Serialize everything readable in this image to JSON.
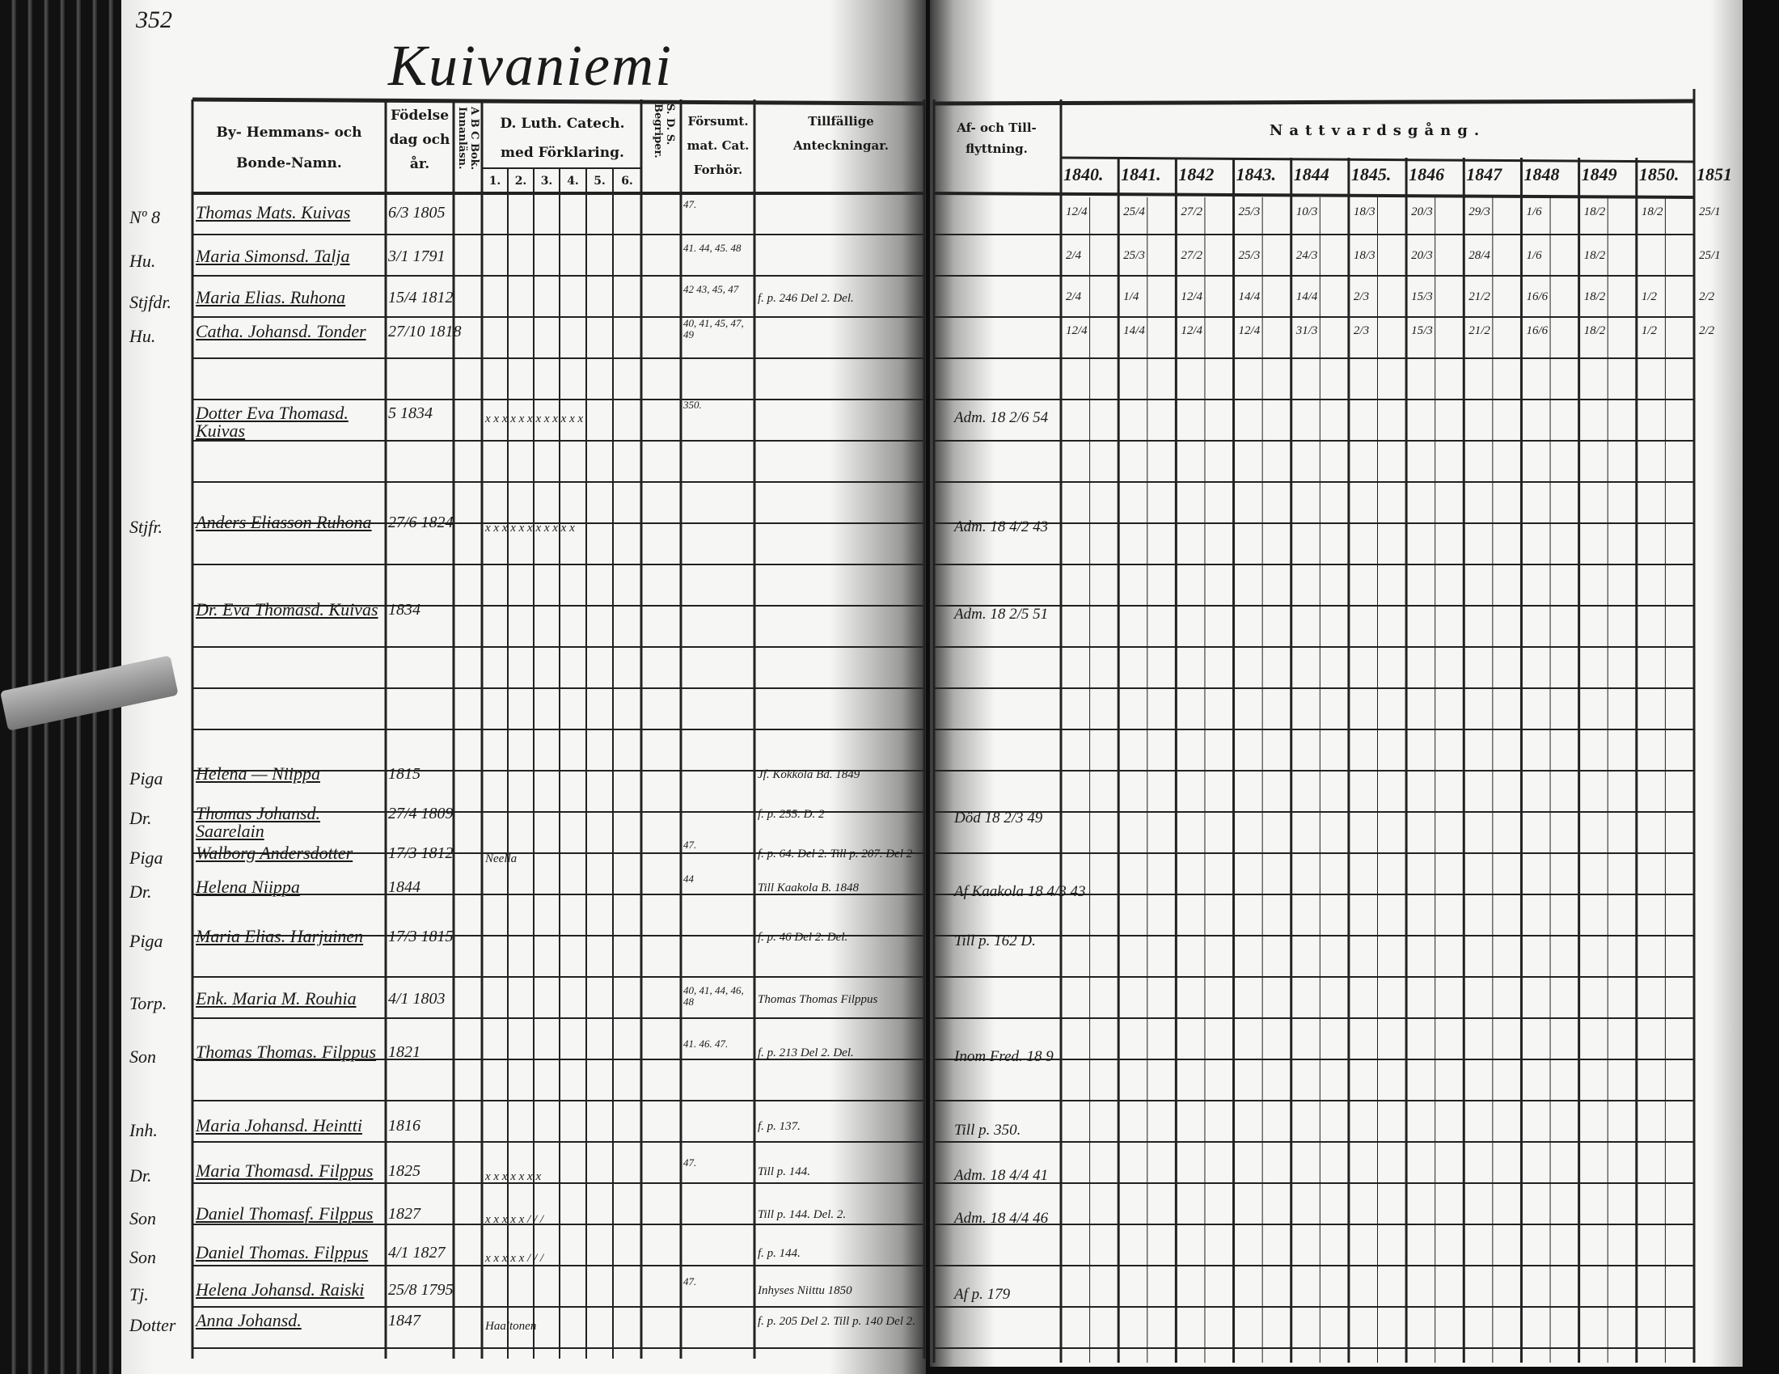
{
  "page_number": "352",
  "village_title": "Kuivaniemi",
  "left_headers": {
    "name": "By- Hemmans- och Bonde-Namn.",
    "birth": "Födelse dag och år.",
    "abc": "A B C Bok. Innanläsn.",
    "catechism": "D. Luth. Catech. med Förklaring.",
    "catechism_sub": [
      "1.",
      "2.",
      "3.",
      "4.",
      "5.",
      "6."
    ],
    "sds": "S. D. S. Begriper.",
    "forsumm": "Försumt. mat. Cat. Forhör.",
    "tillfallige": "Tillfällige Anteckningar."
  },
  "right_headers": {
    "af_till": "Af- och Till-flyttning.",
    "nattvard": "Nattvardsgång.",
    "years": [
      "1840.",
      "1841.",
      "1842",
      "1843.",
      "1844",
      "1845.",
      "1846",
      "1847",
      "1848",
      "1849",
      "1850.",
      "1851"
    ]
  },
  "rows": [
    {
      "margin": "Nº 8",
      "name": "Thomas Mats. Kuivas",
      "birth": "6/3 1805",
      "marks": "",
      "forsum": "47.",
      "notes": "",
      "af_till": "",
      "communion": [
        "12/4",
        "25/4",
        "27/2",
        "25/3",
        "10/3",
        "18/3",
        "20/3",
        "29/3",
        "1/6",
        "18/2",
        "18/2",
        "25/1"
      ]
    },
    {
      "margin": "Hu.",
      "name": "Maria Simonsd. Talja",
      "birth": "3/1 1791",
      "marks": "",
      "forsum": "41. 44, 45. 48",
      "notes": "",
      "af_till": "",
      "communion": [
        "2/4",
        "25/3",
        "27/2",
        "25/3",
        "24/3",
        "18/3",
        "20/3",
        "28/4",
        "1/6",
        "18/2",
        "",
        "25/1"
      ]
    },
    {
      "margin": "Stjfdr.",
      "name": "Maria Elias. Ruhona",
      "birth": "15/4 1812",
      "marks": "",
      "forsum": "42 43, 45, 47",
      "notes": "f. p. 246 Del 2. Del.",
      "af_till": "",
      "communion": [
        "2/4",
        "1/4",
        "12/4",
        "14/4",
        "14/4",
        "2/3",
        "15/3",
        "21/2",
        "16/6",
        "18/2",
        "1/2",
        "2/2"
      ]
    },
    {
      "margin": "Hu.",
      "name": "Catha. Johansd. Tonder",
      "birth": "27/10 1818",
      "marks": "",
      "forsum": "40, 41, 45, 47, 49",
      "notes": "",
      "af_till": "",
      "communion": [
        "12/4",
        "14/4",
        "12/4",
        "12/4",
        "31/3",
        "2/3",
        "15/3",
        "21/2",
        "16/6",
        "18/2",
        "1/2",
        "2/2"
      ]
    },
    {
      "margin": "",
      "name": "Dotter Eva Thomasd. Kuivas",
      "birth": "5 1834",
      "marks": "x x x x x x x x x x x x",
      "forsum": "350.",
      "notes": "",
      "af_till": "Adm. 18 2/6 54",
      "communion": []
    },
    {
      "margin": "Stjfr.",
      "name": "Anders Eliasson Ruhona",
      "birth": "27/6 1824",
      "marks": "x x x x x x x x x x x",
      "forsum": "",
      "notes": "",
      "af_till": "Adm. 18 4/2 43",
      "communion": []
    },
    {
      "margin": "",
      "name": "Dr. Eva Thomasd. Kuivas",
      "birth": "1834",
      "marks": "",
      "forsum": "",
      "notes": "",
      "af_till": "Adm. 18 2/5 51",
      "communion": []
    },
    {
      "margin": "Piga",
      "name": "Helena — Niippa",
      "birth": "1815",
      "marks": "",
      "forsum": "",
      "notes": "Jf. Kokkola Bd. 1849",
      "af_till": "",
      "communion": []
    },
    {
      "margin": "Dr.",
      "name": "Thomas Johansd. Saarelain",
      "birth": "27/4 1809",
      "marks": "",
      "forsum": "",
      "notes": "f. p. 255. D. 2",
      "af_till": "Död 18 2/3 49",
      "communion": []
    },
    {
      "margin": "Piga",
      "name": "Walborg Andersdotter",
      "birth": "17/3 1812",
      "marks": "Neella",
      "forsum": "47.",
      "notes": "f. p. 64. Del 2. Till p. 207. Del 2",
      "af_till": "",
      "communion": []
    },
    {
      "margin": "Dr.",
      "name": "Helena Niippa",
      "birth": "1844",
      "marks": "",
      "forsum": "44",
      "notes": "Till Kaakola B. 1848",
      "af_till": "Af Kaakola 18 4/3 43",
      "communion": []
    },
    {
      "margin": "Piga",
      "name": "Maria Elias. Harjuinen",
      "birth": "17/3 1815",
      "marks": "",
      "forsum": "",
      "notes": "f. p. 46 Del 2. Del.",
      "af_till": "Till p. 162 D.",
      "communion": []
    },
    {
      "margin": "Torp.",
      "name": "Enk. Maria M. Rouhia",
      "birth": "4/1 1803",
      "marks": "",
      "forsum": "40, 41, 44, 46, 48",
      "notes": "Thomas Thomas Filppus",
      "af_till": "",
      "communion": []
    },
    {
      "margin": "Son",
      "name": "Thomas Thomas. Filppus",
      "birth": "1821",
      "marks": "",
      "forsum": "41. 46. 47.",
      "notes": "f. p. 213 Del 2. Del.",
      "af_till": "Inom Fred. 18 9",
      "communion": []
    },
    {
      "margin": "Inh.",
      "name": "Maria Johansd. Heintti",
      "birth": "1816",
      "marks": "",
      "forsum": "",
      "notes": "f. p. 137.",
      "af_till": "Till p. 350.",
      "communion": []
    },
    {
      "margin": "Dr.",
      "name": "Maria Thomasd. Filppus",
      "birth": "1825",
      "marks": "x x x x x x x",
      "forsum": "47.",
      "notes": "Till p. 144.",
      "af_till": "Adm. 18 4/4 41",
      "communion": []
    },
    {
      "margin": "Son",
      "name": "Daniel Thomasf. Filppus",
      "birth": "1827",
      "marks": "x x x x x / / /",
      "forsum": "",
      "notes": "Till p. 144. Del. 2.",
      "af_till": "Adm. 18 4/4 46",
      "communion": []
    },
    {
      "margin": "Son",
      "name": "Daniel Thomas. Filppus",
      "birth": "4/1 1827",
      "marks": "x x x x x / / /",
      "forsum": "",
      "notes": "f. p. 144.",
      "af_till": "",
      "communion": []
    },
    {
      "margin": "Tj.",
      "name": "Helena Johansd. Raiski",
      "birth": "25/8 1795",
      "marks": "",
      "forsum": "47.",
      "notes": "Inhyses Niittu 1850",
      "af_till": "Af p. 179",
      "communion": []
    },
    {
      "margin": "Dotter",
      "name": "Anna Johansd.",
      "birth": "1847",
      "marks": "Haaltonen",
      "forsum": "",
      "notes": "f. p. 205 Del 2. Till p. 140 Del 2.",
      "af_till": "",
      "communion": []
    }
  ],
  "colors": {
    "ink": "#1a1a1a",
    "paper": "#f4f4f2",
    "background": "#0d0d0d"
  }
}
